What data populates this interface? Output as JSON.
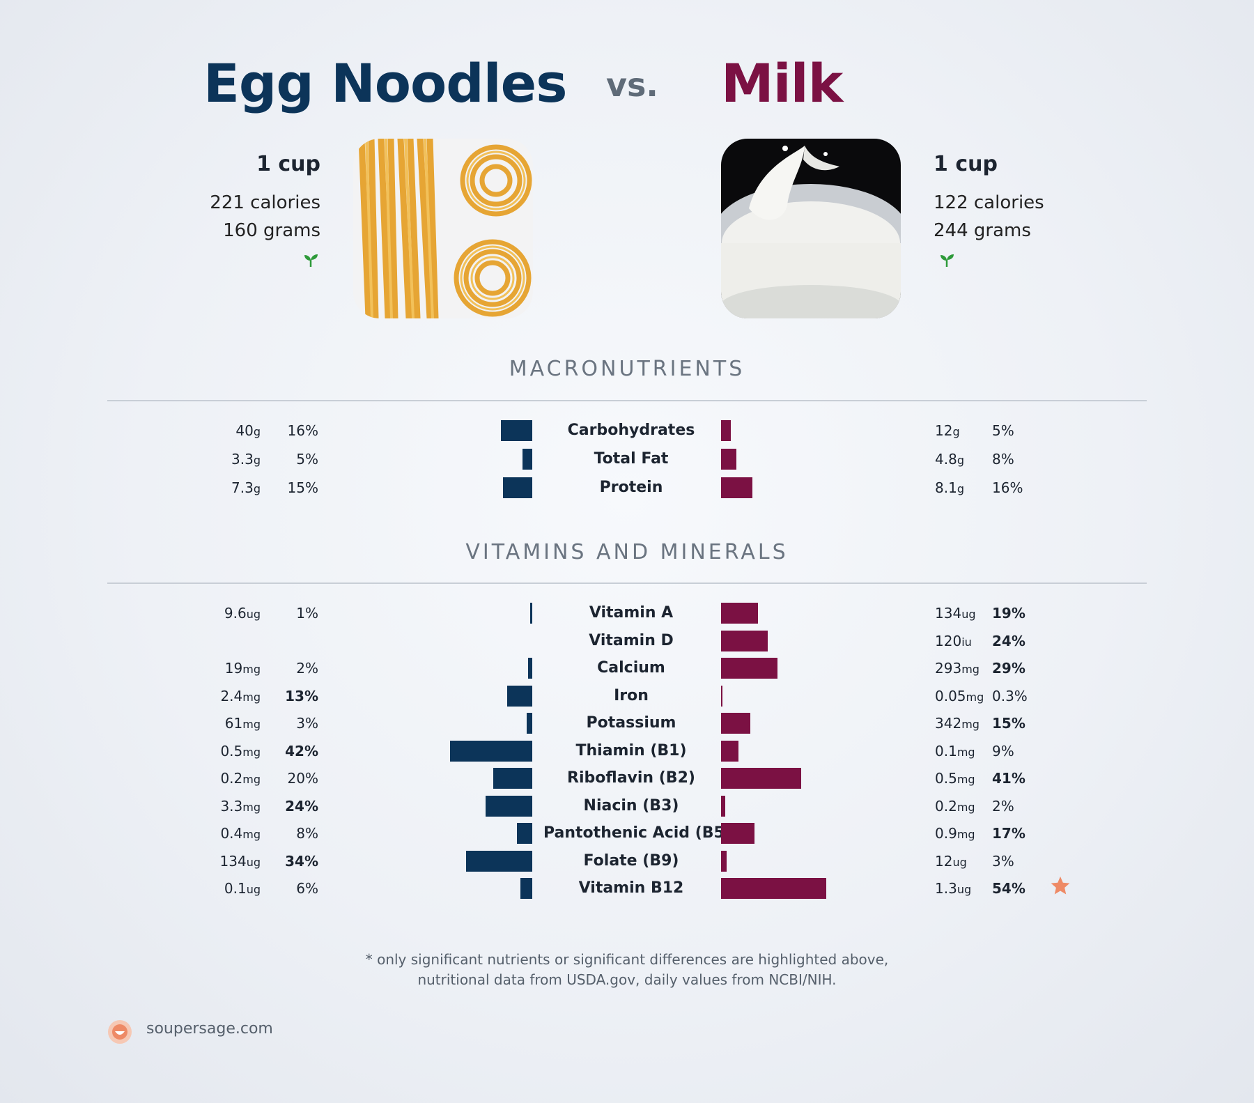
{
  "header": {
    "left_name": "Egg Noodles",
    "vs": "vs.",
    "right_name": "Milk"
  },
  "left_food": {
    "serving": "1 cup",
    "calories": "221 calories",
    "grams": "160 grams",
    "leaf_icon": "leaf-icon"
  },
  "right_food": {
    "serving": "1 cup",
    "calories": "122 calories",
    "grams": "244 grams",
    "leaf_icon": "leaf-icon"
  },
  "colors": {
    "left": "#0c3459",
    "right": "#7b1143",
    "star": "#ee8a66"
  },
  "sections": {
    "macro_title": "MACRONUTRIENTS",
    "vitamins_title": "VITAMINS AND MINERALS"
  },
  "footnote": {
    "line1": "* only significant nutrients or significant differences are highlighted above,",
    "line2": "nutritional data from USDA.gov, daily values from NCBI/NIH."
  },
  "brand": {
    "name": "soupersage.com"
  },
  "chart_data": {
    "type": "bar",
    "orientation": "horizontal-diverging",
    "series": [
      {
        "name": "Egg Noodles"
      },
      {
        "name": "Milk"
      }
    ],
    "macronutrients": [
      {
        "name": "Carbohydrates",
        "left_value": "40",
        "left_unit": "g",
        "left_pct": "16%",
        "left_bar": 16,
        "left_bold": false,
        "right_value": "12",
        "right_unit": "g",
        "right_pct": "5%",
        "right_bar": 5,
        "right_bold": false
      },
      {
        "name": "Total Fat",
        "left_value": "3.3",
        "left_unit": "g",
        "left_pct": "5%",
        "left_bar": 5,
        "left_bold": false,
        "right_value": "4.8",
        "right_unit": "g",
        "right_pct": "8%",
        "right_bar": 8,
        "right_bold": false
      },
      {
        "name": "Protein",
        "left_value": "7.3",
        "left_unit": "g",
        "left_pct": "15%",
        "left_bar": 15,
        "left_bold": false,
        "right_value": "8.1",
        "right_unit": "g",
        "right_pct": "16%",
        "right_bar": 16,
        "right_bold": false
      }
    ],
    "vitamins": [
      {
        "name": "Vitamin A",
        "left_value": "9.6",
        "left_unit": "ug",
        "left_pct": "1%",
        "left_bar": 1,
        "left_bold": false,
        "right_value": "134",
        "right_unit": "ug",
        "right_pct": "19%",
        "right_bar": 19,
        "right_bold": true
      },
      {
        "name": "Vitamin D",
        "left_value": "",
        "left_unit": "",
        "left_pct": "",
        "left_bar": 0,
        "left_bold": false,
        "right_value": "120",
        "right_unit": "iu",
        "right_pct": "24%",
        "right_bar": 24,
        "right_bold": true
      },
      {
        "name": "Calcium",
        "left_value": "19",
        "left_unit": "mg",
        "left_pct": "2%",
        "left_bar": 2,
        "left_bold": false,
        "right_value": "293",
        "right_unit": "mg",
        "right_pct": "29%",
        "right_bar": 29,
        "right_bold": true
      },
      {
        "name": "Iron",
        "left_value": "2.4",
        "left_unit": "mg",
        "left_pct": "13%",
        "left_bar": 13,
        "left_bold": true,
        "right_value": "0.05",
        "right_unit": "mg",
        "right_pct": "0.3%",
        "right_bar": 0.3,
        "right_bold": false
      },
      {
        "name": "Potassium",
        "left_value": "61",
        "left_unit": "mg",
        "left_pct": "3%",
        "left_bar": 3,
        "left_bold": false,
        "right_value": "342",
        "right_unit": "mg",
        "right_pct": "15%",
        "right_bar": 15,
        "right_bold": true
      },
      {
        "name": "Thiamin (B1)",
        "left_value": "0.5",
        "left_unit": "mg",
        "left_pct": "42%",
        "left_bar": 42,
        "left_bold": true,
        "right_value": "0.1",
        "right_unit": "mg",
        "right_pct": "9%",
        "right_bar": 9,
        "right_bold": false
      },
      {
        "name": "Riboflavin (B2)",
        "left_value": "0.2",
        "left_unit": "mg",
        "left_pct": "20%",
        "left_bar": 20,
        "left_bold": false,
        "right_value": "0.5",
        "right_unit": "mg",
        "right_pct": "41%",
        "right_bar": 41,
        "right_bold": true
      },
      {
        "name": "Niacin (B3)",
        "left_value": "3.3",
        "left_unit": "mg",
        "left_pct": "24%",
        "left_bar": 24,
        "left_bold": true,
        "right_value": "0.2",
        "right_unit": "mg",
        "right_pct": "2%",
        "right_bar": 2,
        "right_bold": false
      },
      {
        "name": "Pantothenic Acid (B5)",
        "left_value": "0.4",
        "left_unit": "mg",
        "left_pct": "8%",
        "left_bar": 8,
        "left_bold": false,
        "right_value": "0.9",
        "right_unit": "mg",
        "right_pct": "17%",
        "right_bar": 17,
        "right_bold": true
      },
      {
        "name": "Folate (B9)",
        "left_value": "134",
        "left_unit": "ug",
        "left_pct": "34%",
        "left_bar": 34,
        "left_bold": true,
        "right_value": "12",
        "right_unit": "ug",
        "right_pct": "3%",
        "right_bar": 3,
        "right_bold": false
      },
      {
        "name": "Vitamin B12",
        "left_value": "0.1",
        "left_unit": "ug",
        "left_pct": "6%",
        "left_bar": 6,
        "left_bold": false,
        "right_value": "1.3",
        "right_unit": "ug",
        "right_pct": "54%",
        "right_bar": 54,
        "right_bold": true,
        "star": true
      }
    ]
  }
}
